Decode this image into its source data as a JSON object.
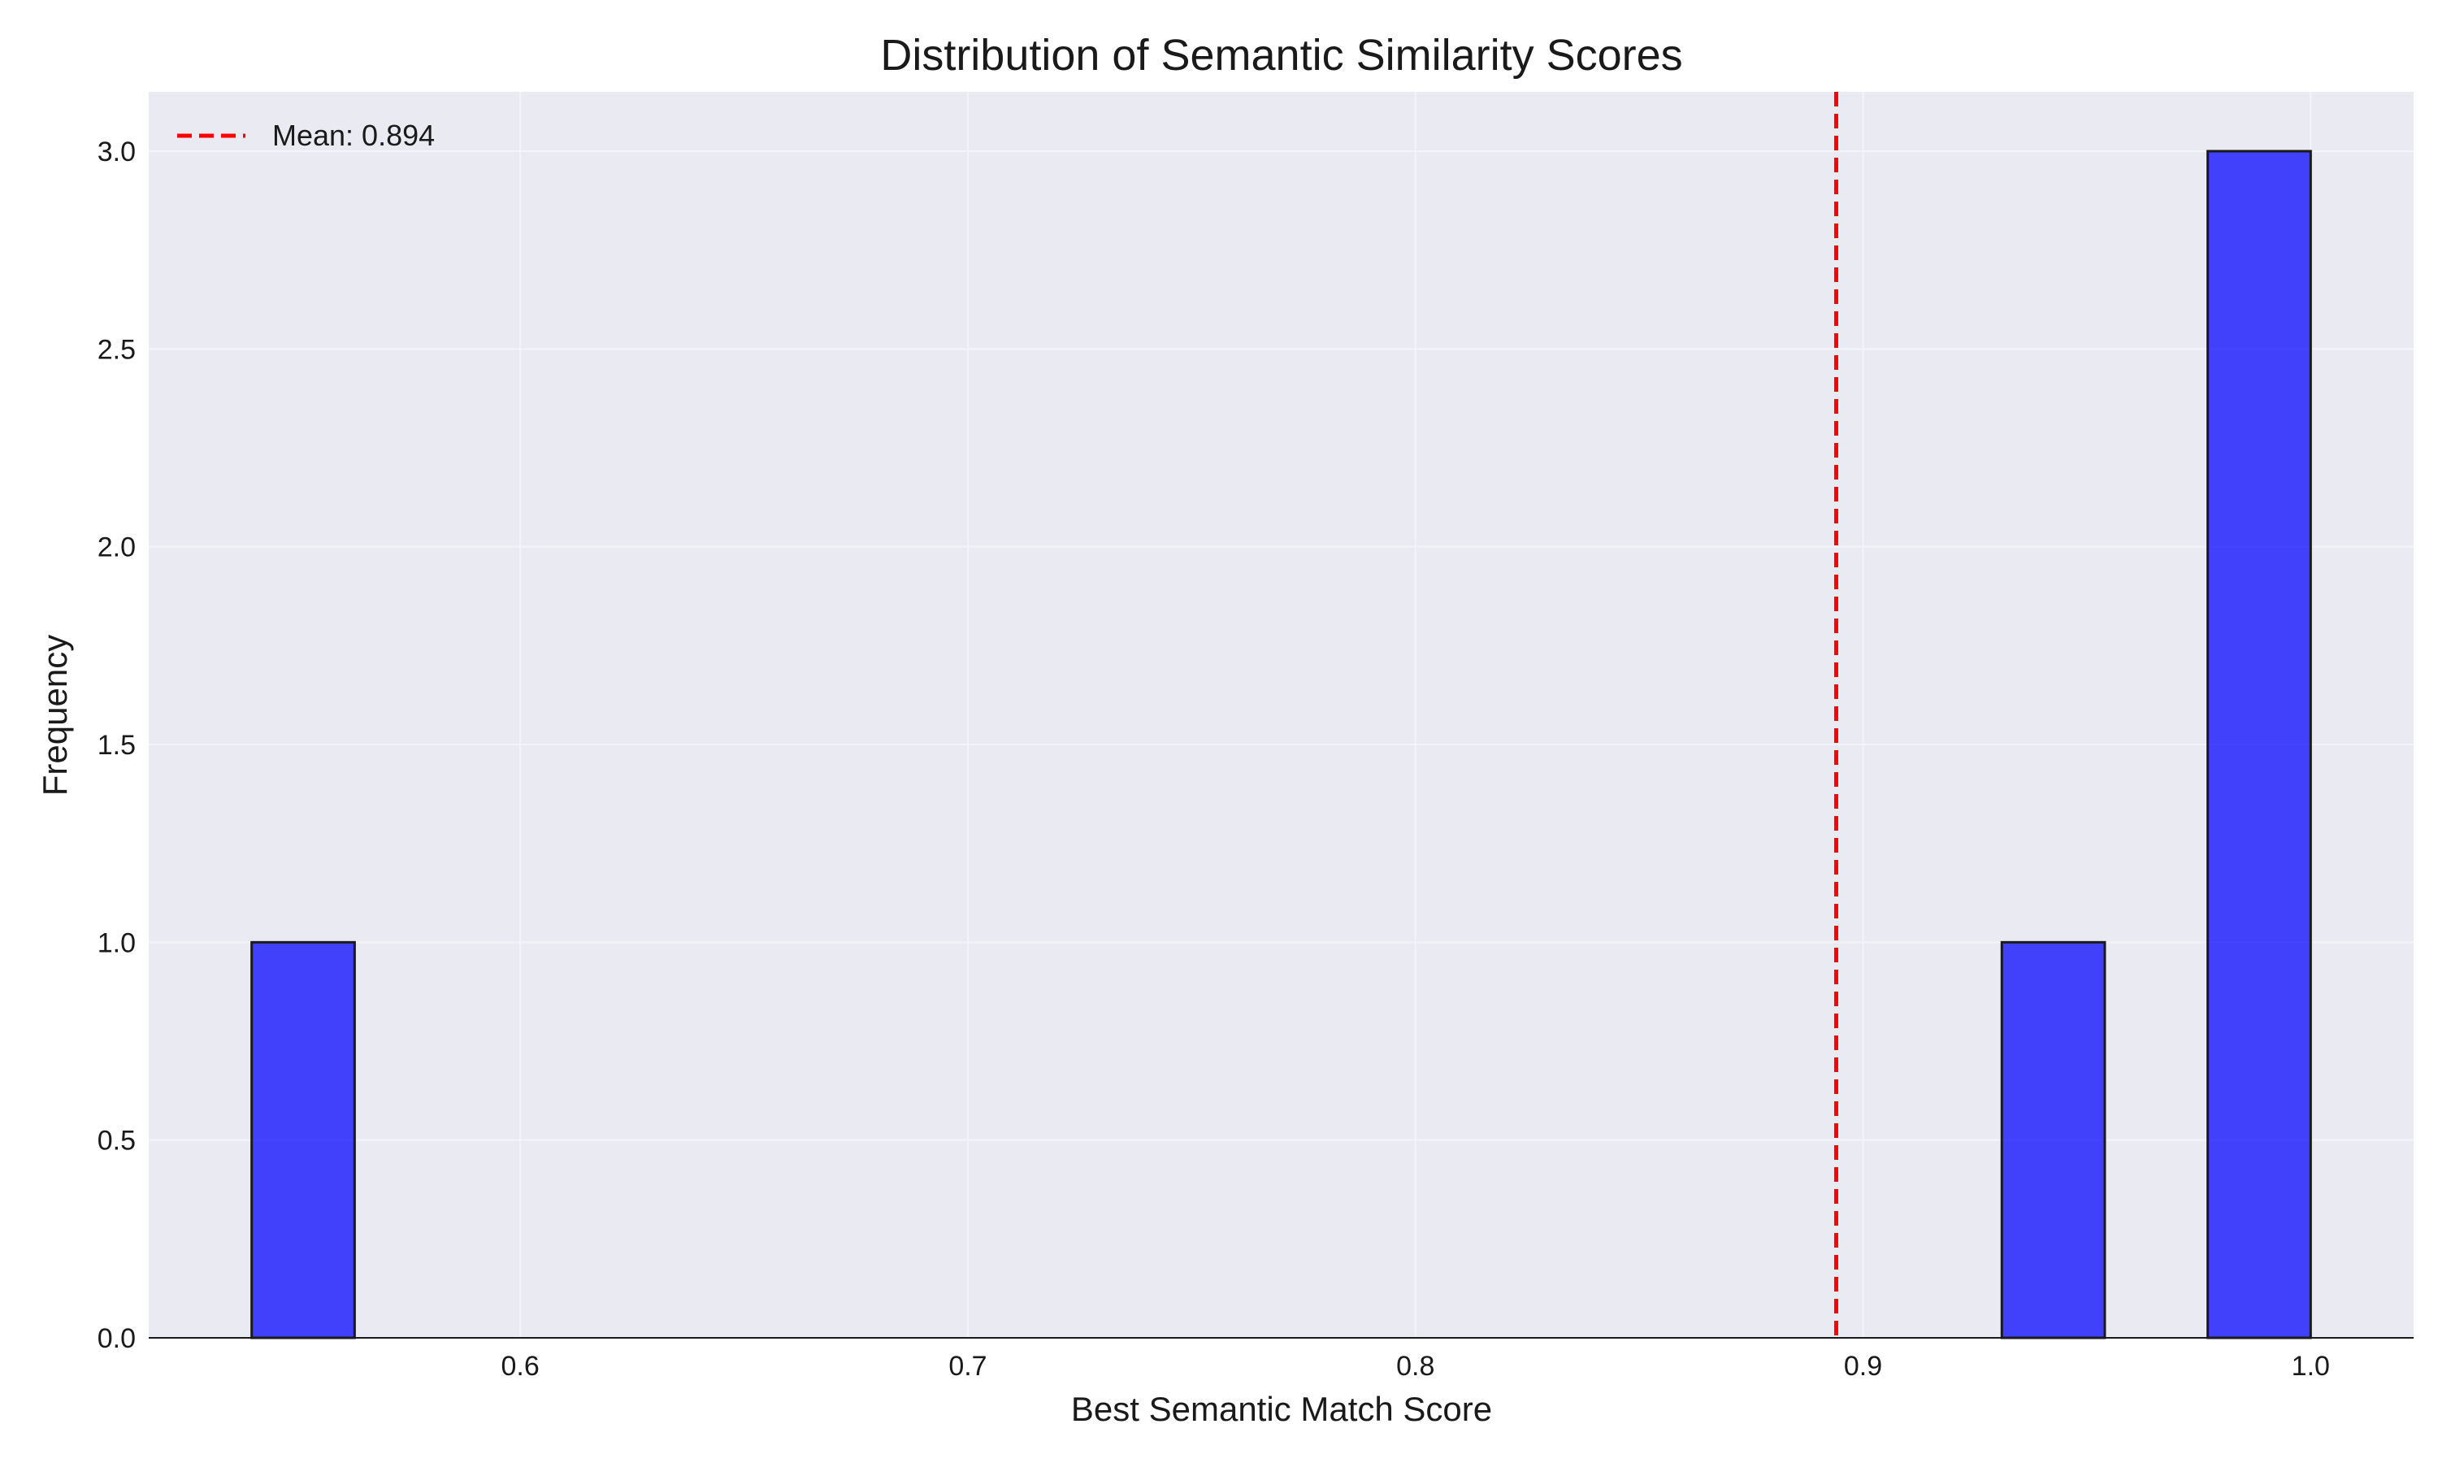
{
  "chart_data": {
    "type": "bar",
    "title": "Distribution of Semantic Similarity Scores",
    "xlabel": "Best Semantic Match Score",
    "ylabel": "Frequency",
    "xlim": [
      0.517,
      1.023
    ],
    "ylim": [
      0,
      3.15
    ],
    "xticks": [
      {
        "value": 0.6,
        "label": "0.6"
      },
      {
        "value": 0.7,
        "label": "0.7"
      },
      {
        "value": 0.8,
        "label": "0.8"
      },
      {
        "value": 0.9,
        "label": "0.9"
      },
      {
        "value": 1.0,
        "label": "1.0"
      }
    ],
    "yticks": [
      {
        "value": 0.0,
        "label": "0.0"
      },
      {
        "value": 0.5,
        "label": "0.5"
      },
      {
        "value": 1.0,
        "label": "1.0"
      },
      {
        "value": 1.5,
        "label": "1.5"
      },
      {
        "value": 2.0,
        "label": "2.0"
      },
      {
        "value": 2.5,
        "label": "2.5"
      },
      {
        "value": 3.0,
        "label": "3.0"
      }
    ],
    "bins": [
      {
        "x0": 0.54,
        "x1": 0.563,
        "count": 1
      },
      {
        "x0": 0.931,
        "x1": 0.954,
        "count": 1
      },
      {
        "x0": 0.977,
        "x1": 1.0,
        "count": 3
      }
    ],
    "mean_line": {
      "value": 0.894,
      "label": "Mean: 0.894",
      "color": "#ff0000",
      "style": "dashed"
    },
    "bar_color": "#0000ff",
    "bar_edge_color": "#1a1a1a",
    "grid": true,
    "legend_position": "top-left",
    "plot_background": "#eaeaf2",
    "grid_color": "#f4f4f8"
  }
}
